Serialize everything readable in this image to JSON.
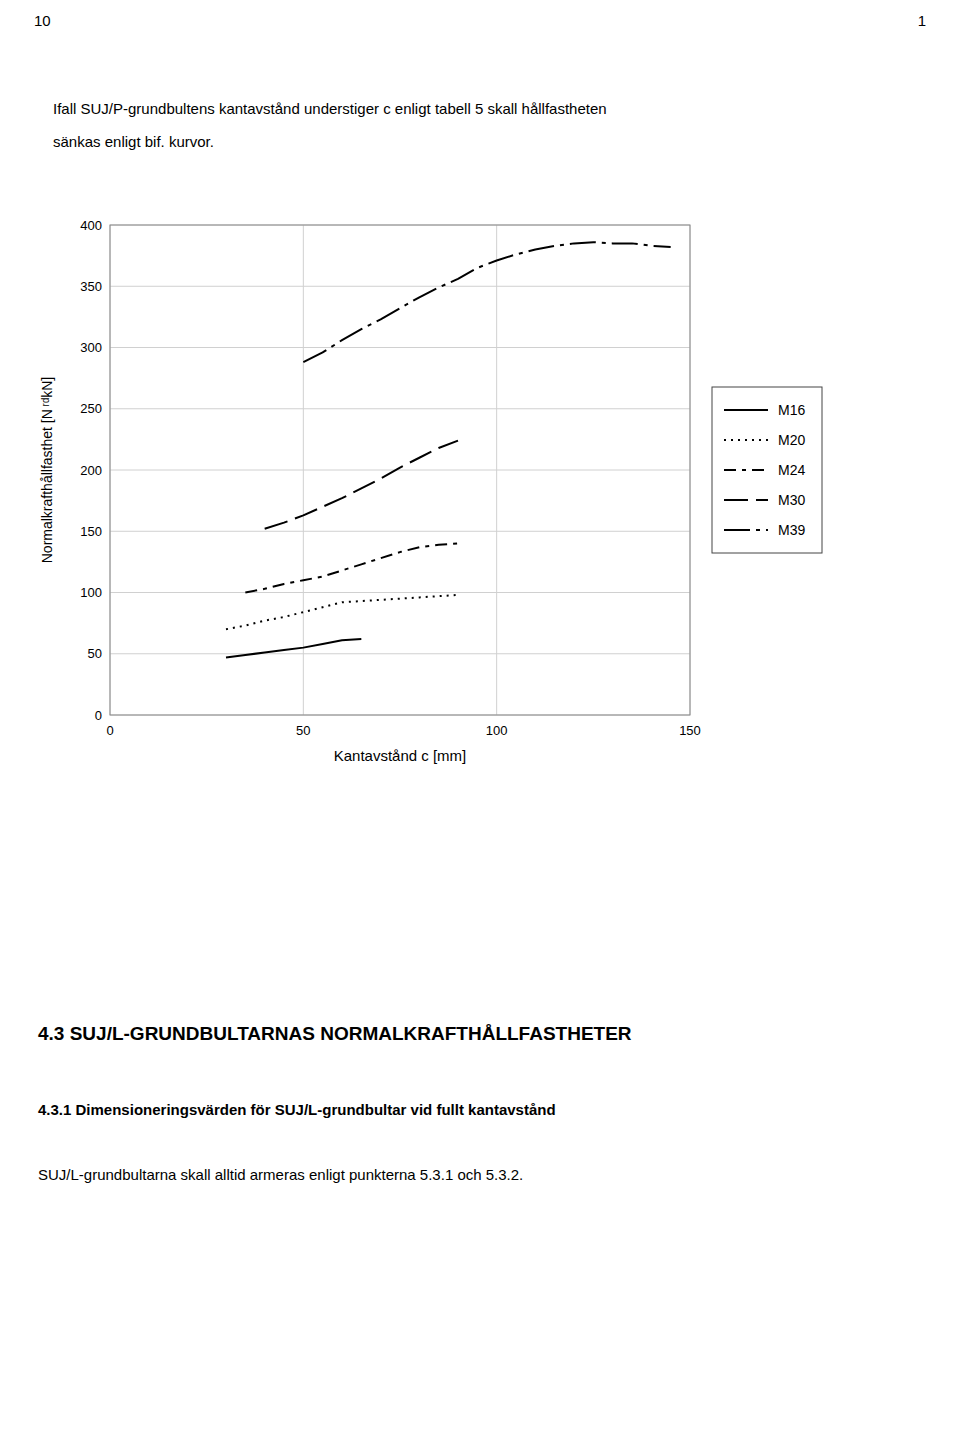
{
  "page": {
    "header_left": "10",
    "header_right": "1",
    "intro": [
      "Ifall SUJ/P-grundbultens kantavstånd understiger c enligt tabell 5 skall hållfastheten",
      "sänkas enligt bif. kurvor."
    ],
    "section_title": "4.3  SUJ/L-GRUNDBULTARNAS NORMALKRAFTHÅLLFASTHETER",
    "subsection_title": "4.3.1  Dimensioneringsvärden för SUJ/L-grundbultar vid fullt kantavstånd",
    "footer_text": "SUJ/L-grundbultarna skall alltid armeras enligt punkterna 5.3.1 och 5.3.2."
  },
  "chart_data": {
    "type": "line",
    "xlabel": "Kantavstånd c [mm]",
    "ylabel": "Normalkrafthållfasthet [N ʳᵈkN]",
    "xlim": [
      0,
      150
    ],
    "ylim": [
      0,
      400
    ],
    "xticks": [
      0,
      50,
      100,
      150
    ],
    "yticks": [
      0,
      50,
      100,
      150,
      200,
      250,
      300,
      350,
      400
    ],
    "grid": true,
    "legend": "right",
    "series": [
      {
        "name": "M16",
        "color": "#000000",
        "line_style": "solid",
        "x": [
          30,
          35,
          40,
          45,
          50,
          55,
          60,
          65
        ],
        "values": [
          47,
          49,
          51,
          53,
          55,
          58,
          61,
          62
        ]
      },
      {
        "name": "M20",
        "color": "#000000",
        "line_style": "dotted",
        "x": [
          30,
          35,
          40,
          45,
          50,
          55,
          60,
          65,
          70,
          75,
          80,
          85,
          90
        ],
        "values": [
          70,
          73,
          77,
          80,
          84,
          88,
          92,
          93,
          94,
          95,
          96,
          97,
          98
        ]
      },
      {
        "name": "M24",
        "color": "#000000",
        "line_style": "dashdot",
        "x": [
          35,
          40,
          45,
          50,
          55,
          60,
          65,
          70,
          75,
          80,
          85,
          90
        ],
        "values": [
          100,
          103,
          107,
          110,
          113,
          118,
          123,
          128,
          133,
          137,
          139,
          140
        ]
      },
      {
        "name": "M30",
        "color": "#000000",
        "line_style": "longdash",
        "x": [
          40,
          45,
          50,
          55,
          60,
          65,
          70,
          75,
          80,
          85,
          90
        ],
        "values": [
          152,
          157,
          163,
          170,
          177,
          185,
          193,
          202,
          210,
          218,
          224
        ]
      },
      {
        "name": "M39",
        "color": "#000000",
        "line_style": "longdashdot",
        "x": [
          50,
          55,
          60,
          65,
          70,
          75,
          80,
          85,
          90,
          95,
          100,
          105,
          110,
          115,
          120,
          125,
          130,
          135,
          140,
          145
        ],
        "values": [
          288,
          296,
          306,
          315,
          323,
          332,
          341,
          349,
          356,
          365,
          371,
          376,
          380,
          383,
          385,
          386,
          385,
          385,
          383,
          382
        ]
      }
    ]
  }
}
